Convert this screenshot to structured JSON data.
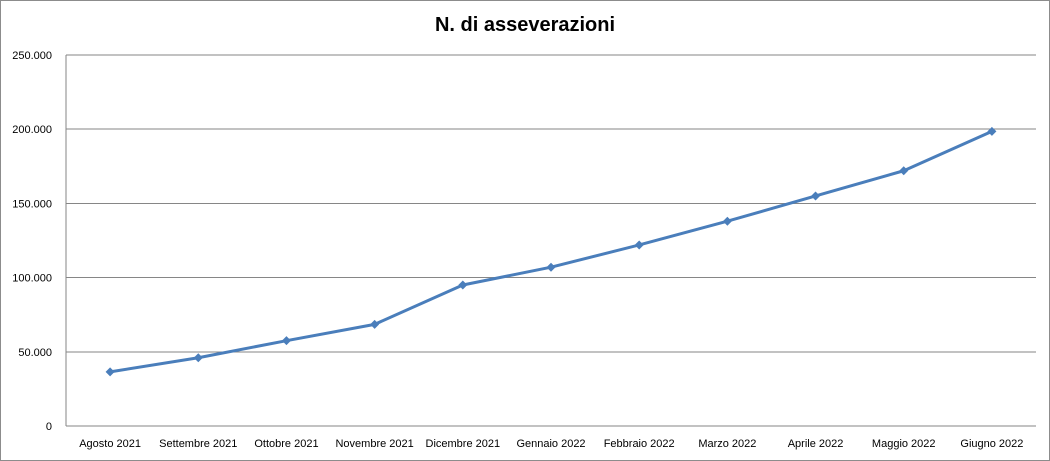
{
  "chart_data": {
    "type": "line",
    "title": "N. di asseverazioni",
    "xlabel": "",
    "ylabel": "",
    "categories": [
      "Agosto 2021",
      "Settembre 2021",
      "Ottobre 2021",
      "Novembre 2021",
      "Dicembre 2021",
      "Gennaio 2022",
      "Febbraio 2022",
      "Marzo 2022",
      "Aprile 2022",
      "Maggio 2022",
      "Giugno 2022"
    ],
    "series": [
      {
        "values": [
          36500,
          46000,
          57500,
          68500,
          95000,
          107000,
          122000,
          138000,
          155000,
          172000,
          198500
        ]
      }
    ],
    "ylim": [
      0,
      250000
    ],
    "yticks": [
      0,
      50000,
      100000,
      150000,
      200000,
      250000
    ],
    "ytick_labels": [
      "0",
      "50.000",
      "100.000",
      "150.000",
      "200.000",
      "250.000"
    ],
    "grid": true,
    "legend": "none",
    "line_color": "#4a7ebb"
  }
}
